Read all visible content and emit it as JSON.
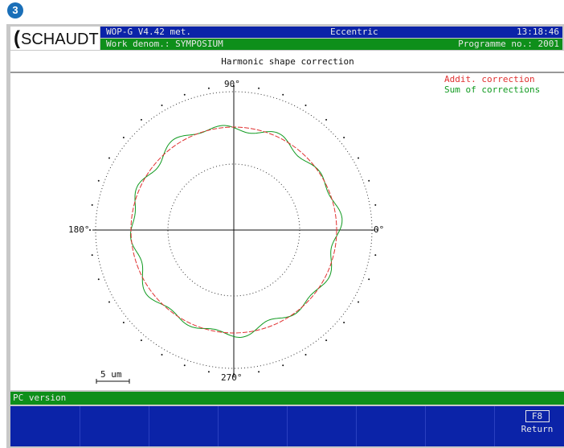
{
  "badge": "3",
  "logo": "SCHAUDT",
  "header": {
    "version": "WOP-G V4.42 met.",
    "mode": "Eccentric",
    "time": "13:18:46",
    "work": "Work denom.: SYMPOSIUM",
    "programme": "Programme no.: 2001"
  },
  "title": "Harmonic shape correction",
  "legend": [
    "Addit. correction",
    "Sum of corrections"
  ],
  "axes": {
    "top": "90°",
    "left": "180°",
    "right": "0°",
    "bottom": "270°"
  },
  "scale": "5 um",
  "status": "PC version",
  "fkey": {
    "key": "F8",
    "label": "Return"
  }
}
